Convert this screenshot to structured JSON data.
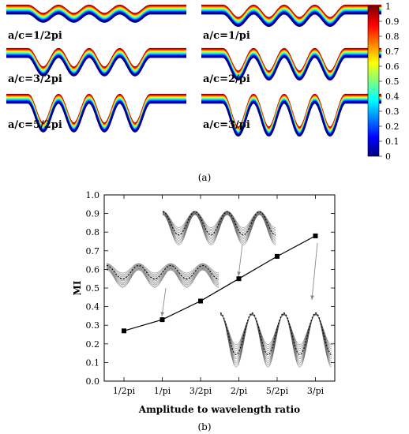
{
  "panel_a": {
    "caption": "(a)",
    "subplot_labels": [
      "a/c=1/2pi",
      "a/c=1/pi",
      "a/c=3/2pi",
      "a/c=2/pi",
      "a/c=5/2pi",
      "a/c=3/pi"
    ],
    "amplitudes": [
      0.2,
      0.3,
      0.45,
      0.55,
      0.7,
      0.8
    ],
    "colorbar": {
      "min": 0,
      "max": 1,
      "ticks": [
        "1",
        "0.9",
        "0.8",
        "0.7",
        "0.6",
        "0.5",
        "0.4",
        "0.3",
        "0.2",
        "0.1",
        "0"
      ],
      "colormap": [
        "#00007f",
        "#0000ff",
        "#007fff",
        "#00ffff",
        "#7fff7f",
        "#ffff00",
        "#ff7f00",
        "#ff0000",
        "#7f0000"
      ]
    }
  },
  "panel_b": {
    "caption": "(b)",
    "chart_data": {
      "type": "line",
      "categories": [
        "1/2pi",
        "1/pi",
        "3/2pi",
        "2/pi",
        "5/2pi",
        "3/pi"
      ],
      "values": [
        0.27,
        0.33,
        0.43,
        0.55,
        0.67,
        0.78
      ],
      "xlabel": "Amplitude to wavelength ratio",
      "ylabel": "MI",
      "ylim": [
        0.0,
        1.0
      ],
      "yticks": [
        "0.0",
        "0.1",
        "0.2",
        "0.3",
        "0.4",
        "0.5",
        "0.6",
        "0.7",
        "0.8",
        "0.9",
        "1.0"
      ],
      "grid": false,
      "marker": "square",
      "line_color": "#000000",
      "insets": [
        "wave-bundle-small",
        "wave-bundle-medium",
        "wave-bundle-large"
      ]
    }
  }
}
